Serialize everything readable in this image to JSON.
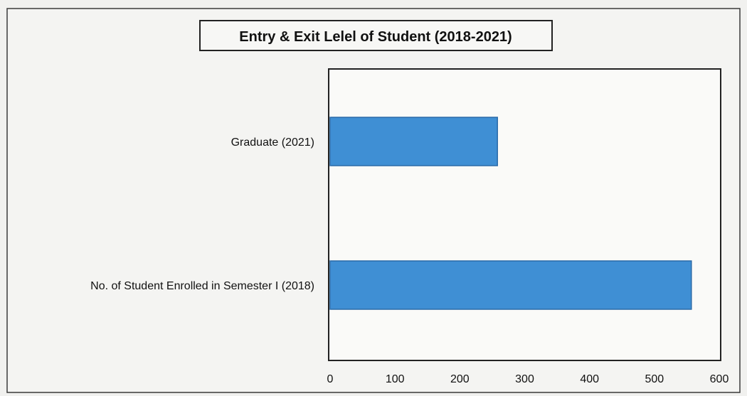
{
  "chart_data": {
    "type": "bar",
    "orientation": "horizontal",
    "title": "Entry & Exit Lelel of Student (2018-2021)",
    "categories": [
      "Graduate (2021)",
      "No. of Student Enrolled in Semester I (2018)"
    ],
    "values": [
      258,
      557
    ],
    "xlim": [
      0,
      600
    ],
    "xticks": [
      0,
      100,
      200,
      300,
      400,
      500,
      600
    ],
    "xlabel": "",
    "ylabel": "",
    "grid": false,
    "legend": "none",
    "bar_color": "#3f8fd4",
    "bar_edge_color": "#2a6aa8"
  }
}
